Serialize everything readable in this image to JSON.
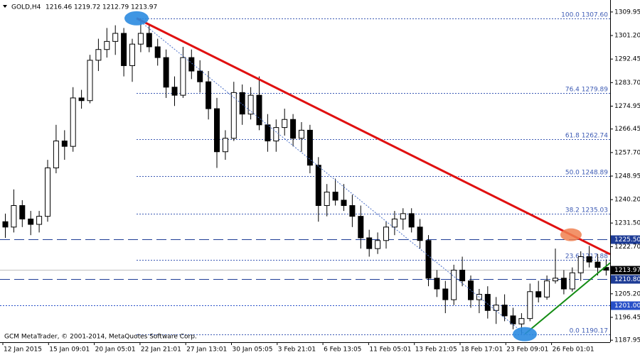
{
  "header": {
    "symbol": "GOLD,H4",
    "ohlc": [
      1216.46,
      1219.72,
      1212.79,
      1213.97
    ]
  },
  "footer": "GCM MetaTrader, © 2001-2014, MetaQuotes Software Corp.",
  "chart_data": {
    "type": "candlestick",
    "ylim": [
      1187.2,
      1314.4
    ],
    "yticks": [
      1309.95,
      {
        "value": 1301.2,
        "label": "1301.20"
      },
      1292.45,
      {
        "value": 1283.7,
        "label": "1283.70"
      },
      1274.95,
      1266.45,
      {
        "value": 1257.7,
        "label": "1257.70"
      },
      1248.95,
      {
        "value": 1240.2,
        "label": "1240.20"
      },
      {
        "value": 1231.5,
        "label": "1231.50"
      },
      {
        "value": 1222.7,
        "label": "1222.70"
      },
      {
        "value": 1205.2,
        "label": "1205.20"
      },
      1196.45,
      1187.95
    ],
    "time_labels": [
      "12 Jan 2015",
      "15 Jan 09:01",
      "20 Jan 05:01",
      "22 Jan 21:01",
      "27 Jan 13:01",
      "30 Jan 05:05",
      "3 Feb 21:01",
      "6 Feb 13:05",
      "11 Feb 05:01",
      "13 Feb 21:05",
      "18 Feb 17:01",
      "23 Feb 09:01",
      "26 Feb 01:01"
    ],
    "bull_color": "#ffffff",
    "bear_color": "#000000",
    "candles": {
      "open": [
        1232,
        1230,
        1238,
        1233,
        1231,
        1234,
        1252,
        1262,
        1260,
        1278,
        1277,
        1292,
        1296,
        1299,
        1302,
        1290,
        1298,
        1302,
        1297,
        1293,
        1282,
        1279,
        1293,
        1288,
        1284,
        1274,
        1258,
        1263,
        1280,
        1272,
        1279,
        1268,
        1262,
        1267,
        1270,
        1263,
        1266,
        1253,
        1238,
        1243,
        1240,
        1238,
        1234,
        1226,
        1222,
        1225,
        1230,
        1233,
        1235,
        1230,
        1225,
        1211,
        1207,
        1203,
        1214,
        1210,
        1203,
        1205,
        1199,
        1201,
        1197,
        1194,
        1196,
        1206,
        1204,
        1210,
        1211,
        1207,
        1213,
        1219,
        1217,
        1215
      ],
      "high": [
        1235,
        1244,
        1240,
        1236,
        1236,
        1255,
        1268,
        1266,
        1282,
        1281,
        1294,
        1300,
        1304,
        1305,
        1304,
        1300,
        1307.6,
        1305,
        1300,
        1296,
        1286,
        1297,
        1296,
        1292,
        1288,
        1278,
        1266,
        1284,
        1283,
        1282,
        1286,
        1272,
        1270,
        1274,
        1272,
        1269,
        1268,
        1256,
        1246,
        1248,
        1246,
        1242,
        1238,
        1229,
        1228,
        1232,
        1236,
        1237,
        1237,
        1233,
        1227,
        1214,
        1210,
        1216,
        1219,
        1212,
        1207,
        1208,
        1204,
        1205,
        1200,
        1198,
        1209,
        1210,
        1212,
        1222,
        1214,
        1215,
        1221,
        1223,
        1220,
        1218
      ],
      "low": [
        1226,
        1228,
        1230,
        1227,
        1228,
        1232,
        1250,
        1255,
        1258,
        1274,
        1276,
        1288,
        1293,
        1294,
        1286,
        1284,
        1295,
        1295,
        1290,
        1278,
        1275,
        1278,
        1285,
        1280,
        1270,
        1252,
        1255,
        1262,
        1268,
        1270,
        1266,
        1258,
        1258,
        1264,
        1260,
        1258,
        1250,
        1232,
        1234,
        1238,
        1236,
        1230,
        1222,
        1219,
        1220,
        1222,
        1227,
        1229,
        1228,
        1222,
        1208,
        1204,
        1198,
        1201,
        1208,
        1200,
        1198,
        1196,
        1194,
        1195,
        1192,
        1190.2,
        1195,
        1202,
        1203,
        1209,
        1205,
        1206,
        1210,
        1215,
        1212,
        1212
      ],
      "close": [
        1230,
        1238,
        1233,
        1231,
        1234,
        1252,
        1262,
        1260,
        1278,
        1277,
        1292,
        1296,
        1299,
        1302,
        1290,
        1298,
        1302,
        1297,
        1293,
        1282,
        1279,
        1293,
        1288,
        1284,
        1274,
        1258,
        1263,
        1280,
        1272,
        1279,
        1268,
        1262,
        1267,
        1270,
        1263,
        1266,
        1253,
        1238,
        1243,
        1240,
        1238,
        1234,
        1226,
        1222,
        1225,
        1230,
        1233,
        1235,
        1230,
        1225,
        1211,
        1207,
        1203,
        1214,
        1210,
        1203,
        1205,
        1199,
        1201,
        1197,
        1194,
        1196,
        1206,
        1204,
        1210,
        1211,
        1207,
        1213,
        1219,
        1217,
        1215,
        1213.97
      ]
    },
    "fib_color": "#3c5ab4",
    "fib_levels": [
      {
        "level": {
          "value": 100,
          "label": "100.0"
        },
        "price": {
          "value": 1307.6,
          "label": "1307.60"
        }
      },
      {
        "level": 76.4,
        "price": 1279.89
      },
      {
        "level": 61.8,
        "price": 1262.74
      },
      {
        "level": {
          "value": 50,
          "label": "50.0"
        },
        "price": 1248.89
      },
      {
        "level": 38.2,
        "price": 1235.03
      },
      {
        "level": 23.6,
        "price": 1217.88
      },
      {
        "level": {
          "value": 0,
          "label": "0.0"
        },
        "price": 1190.17
      }
    ],
    "price_levels": [
      {
        "price": {
          "value": 1225.5,
          "label": "1225.50"
        },
        "color": "#1e3c96",
        "dash": "long"
      },
      {
        "price": {
          "value": 1210.8,
          "label": "1210.80"
        },
        "color": "#1e3c96",
        "dash": "long"
      },
      {
        "price": {
          "value": 1201,
          "label": "1201.00"
        },
        "color": "#2850c8",
        "dash": "dotted"
      }
    ],
    "current_price": {
      "value": 1213.97,
      "color": "#c0c0c0"
    },
    "trendlines": [
      {
        "color": "#e01010",
        "values": [
          1307.6,
          1219.9
        ],
        "dash": "solid"
      },
      {
        "color": "#148c14",
        "values": [
          1190.2,
          1216.7
        ],
        "dash": "solid"
      },
      {
        "color": "#4a6fc8",
        "values": [
          1307.6,
          1190.2
        ],
        "dash": "dotted"
      }
    ]
  }
}
